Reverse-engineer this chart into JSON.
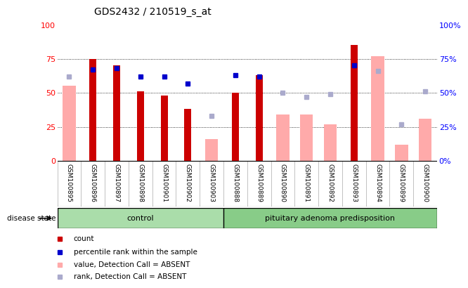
{
  "title": "GDS2432 / 210519_s_at",
  "samples": [
    "GSM100895",
    "GSM100896",
    "GSM100897",
    "GSM100898",
    "GSM100901",
    "GSM100902",
    "GSM100903",
    "GSM100888",
    "GSM100889",
    "GSM100890",
    "GSM100891",
    "GSM100892",
    "GSM100893",
    "GSM100894",
    "GSM100899",
    "GSM100900"
  ],
  "n_control": 7,
  "disease_label": "control",
  "disease2_label": "pituitary adenoma predisposition",
  "disease_state_label": "disease state",
  "red_bars": [
    null,
    75,
    70,
    51,
    48,
    38,
    null,
    50,
    63,
    null,
    null,
    null,
    85,
    null,
    null,
    null
  ],
  "pink_bars": [
    55,
    null,
    null,
    null,
    null,
    null,
    16,
    null,
    null,
    34,
    34,
    27,
    null,
    77,
    12,
    31
  ],
  "blue_squares": [
    null,
    67,
    68,
    62,
    62,
    57,
    null,
    63,
    62,
    null,
    null,
    null,
    70,
    null,
    null,
    null
  ],
  "light_blue_squares": [
    62,
    null,
    null,
    null,
    null,
    null,
    33,
    null,
    null,
    50,
    47,
    49,
    null,
    66,
    27,
    51
  ],
  "ylim": [
    0,
    100
  ],
  "yticks": [
    0,
    25,
    50,
    75,
    100
  ],
  "grid_lines": [
    25,
    50,
    75
  ],
  "red_color": "#cc0000",
  "pink_color": "#ffaaaa",
  "blue_color": "#0000cc",
  "light_blue_color": "#aaaacc",
  "legend_items": [
    "count",
    "percentile rank within the sample",
    "value, Detection Call = ABSENT",
    "rank, Detection Call = ABSENT"
  ]
}
